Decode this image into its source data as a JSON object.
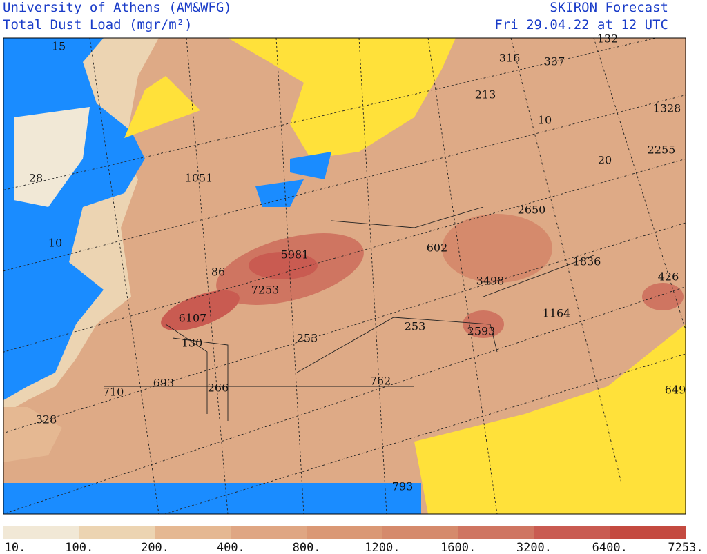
{
  "header": {
    "institution": "University of Athens (AM&WFG)",
    "product": "Total Dust Load (mgr/m²)",
    "model": "SKIRON Forecast",
    "valid_time": "Fri 29.04.22 at 12 UTC"
  },
  "map_labels": [
    15,
    316,
    337,
    132,
    213,
    10,
    1328,
    2255,
    20,
    28,
    1051,
    2650,
    10,
    602,
    5981,
    1836,
    86,
    3498,
    426,
    7253,
    1164,
    6107,
    253,
    2593,
    253,
    130,
    693,
    762,
    710,
    266,
    649,
    328,
    793
  ],
  "legend": {
    "labels": [
      "10.",
      "100.",
      "200.",
      "400.",
      "800.",
      "1200.",
      "1600.",
      "3200.",
      "6400.",
      "7253."
    ],
    "colors": [
      "#f1e8d6",
      "#ecd4b2",
      "#e5b892",
      "#dfa683",
      "#da9875",
      "#d58a6c",
      "#cf7561",
      "#c95b51",
      "#c44a40"
    ]
  }
}
